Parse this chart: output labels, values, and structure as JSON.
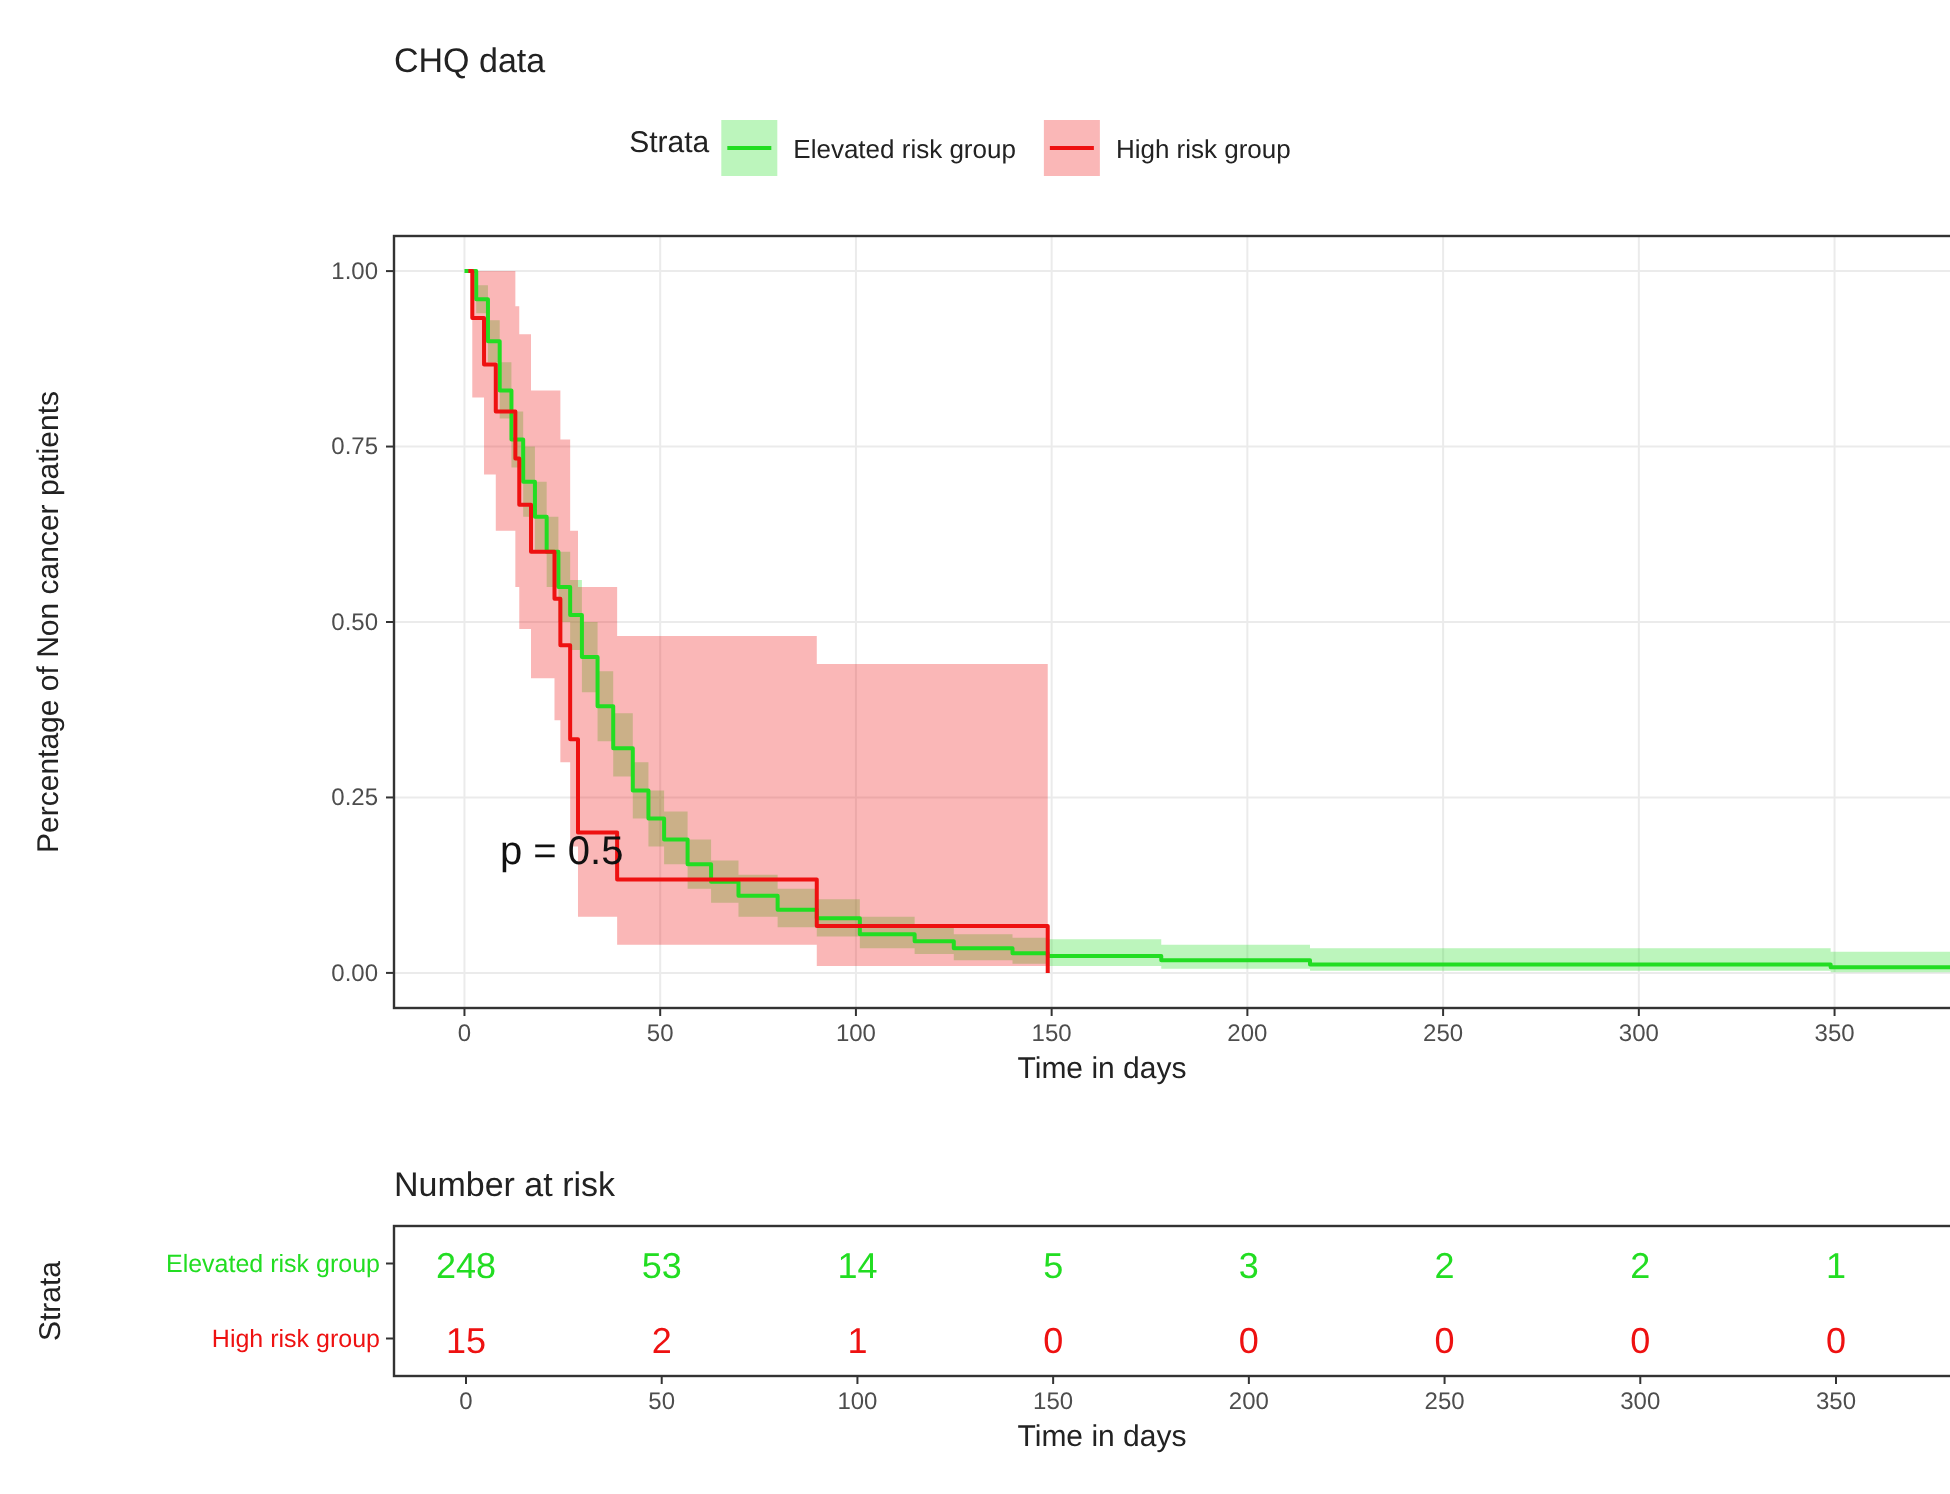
{
  "chart_data": [
    {
      "type": "step",
      "title": "CHQ data",
      "xlabel": "Time in days",
      "ylabel": "Percentage of Non cancer patients",
      "legend_title": "Strata",
      "legend": "top",
      "grid": true,
      "xlim": [
        -18,
        380
      ],
      "xticks": [
        0,
        50,
        100,
        150,
        200,
        250,
        300,
        350
      ],
      "ylim": [
        -0.05,
        1.05
      ],
      "yticks": [
        {
          "value": 0,
          "label": "0.00"
        },
        {
          "value": 0.25,
          "label": "0.25"
        },
        {
          "value": 0.5,
          "label": "0.50"
        },
        {
          "value": 0.75,
          "label": "0.75"
        },
        {
          "value": 1,
          "label": "1.00"
        }
      ],
      "annotations": [
        "p = 0.5"
      ],
      "series": [
        {
          "name": "Elevated risk group",
          "color": "#22dd22",
          "x": [
            0,
            3,
            6,
            9,
            12,
            15,
            18,
            21,
            24,
            27,
            30,
            34,
            38,
            43,
            47,
            51,
            57,
            63,
            70,
            80,
            90,
            101,
            115,
            125,
            140,
            149,
            178,
            216,
            349,
            380
          ],
          "values": [
            1,
            0.96,
            0.9,
            0.83,
            0.76,
            0.7,
            0.65,
            0.6,
            0.55,
            0.51,
            0.45,
            0.38,
            0.32,
            0.26,
            0.22,
            0.19,
            0.155,
            0.13,
            0.11,
            0.09,
            0.078,
            0.055,
            0.045,
            0.035,
            0.028,
            0.024,
            0.018,
            0.012,
            0.008,
            0.008
          ],
          "lower": [
            1,
            0.94,
            0.87,
            0.79,
            0.72,
            0.65,
            0.6,
            0.55,
            0.5,
            0.46,
            0.4,
            0.33,
            0.28,
            0.22,
            0.18,
            0.155,
            0.12,
            0.1,
            0.08,
            0.065,
            0.052,
            0.035,
            0.027,
            0.018,
            0.013,
            0.01,
            0.006,
            0.003,
            0.001,
            0.001
          ],
          "upper": [
            1,
            0.98,
            0.93,
            0.87,
            0.8,
            0.75,
            0.7,
            0.65,
            0.6,
            0.56,
            0.5,
            0.43,
            0.37,
            0.3,
            0.26,
            0.23,
            0.19,
            0.16,
            0.14,
            0.12,
            0.105,
            0.08,
            0.068,
            0.055,
            0.05,
            0.048,
            0.04,
            0.035,
            0.03,
            0.03
          ]
        },
        {
          "name": "High risk group",
          "color": "#ee1111",
          "x": [
            1,
            2,
            5,
            8,
            13,
            14,
            17,
            23,
            24.5,
            27,
            29,
            39,
            90,
            149
          ],
          "values": [
            1,
            0.933,
            0.867,
            0.8,
            0.733,
            0.667,
            0.6,
            0.533,
            0.467,
            0.333,
            0.2,
            0.133,
            0.067,
            0
          ],
          "lower": [
            1,
            0.82,
            0.71,
            0.63,
            0.55,
            0.49,
            0.42,
            0.36,
            0.3,
            0.18,
            0.08,
            0.04,
            0.01,
            0.01
          ],
          "upper": [
            1,
            1,
            1,
            1,
            0.95,
            0.91,
            0.83,
            0.83,
            0.76,
            0.63,
            0.55,
            0.48,
            0.44,
            0.44
          ]
        }
      ]
    },
    {
      "type": "heatmap",
      "title": "Number at risk",
      "xlabel": "Time in days",
      "ylabel": "Strata",
      "data_labels": true,
      "categories": [
        "0",
        "50",
        "100",
        "150",
        "200",
        "250",
        "300",
        "350"
      ],
      "y_categories": [
        "Elevated risk group",
        "High risk group"
      ],
      "colors": [
        "#22dd22",
        "#ee1111"
      ],
      "cells": [
        [
          248,
          53,
          14,
          5,
          3,
          2,
          2,
          1
        ],
        [
          15,
          2,
          1,
          0,
          0,
          0,
          0,
          0
        ]
      ]
    }
  ]
}
